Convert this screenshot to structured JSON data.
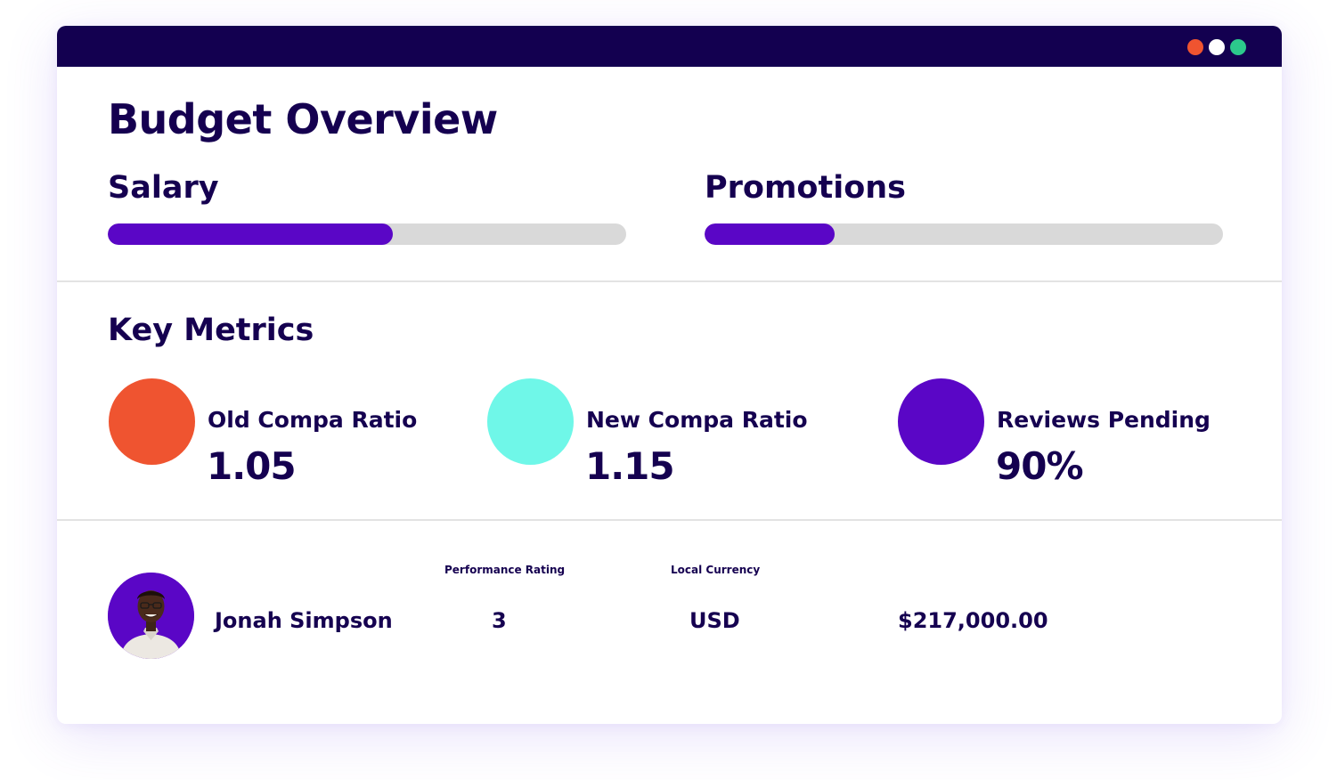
{
  "window": {
    "controls": [
      "close",
      "minimize",
      "maximize"
    ],
    "control_colors": [
      "#ef5430",
      "#ffffff",
      "#2cc98c"
    ],
    "titlebar_color": "#130050"
  },
  "page": {
    "title": "Budget Overview"
  },
  "budget": [
    {
      "label": "Salary",
      "progress_percent": 55
    },
    {
      "label": "Promotions",
      "progress_percent": 25
    }
  ],
  "key_metrics": {
    "title": "Key Metrics",
    "items": [
      {
        "label": "Old Compa Ratio",
        "value": "1.05",
        "color": "#ef5430"
      },
      {
        "label": "New Compa Ratio",
        "value": "1.15",
        "color": "#6ff7e8"
      },
      {
        "label": "Reviews Pending",
        "value": "90%",
        "color": "#5a06c6"
      }
    ]
  },
  "employee_table": {
    "headers": {
      "performance_rating": "Performance Rating",
      "local_currency": "Local Currency"
    },
    "rows": [
      {
        "name": "Jonah Simpson",
        "avatar_icon": "person-photo-icon",
        "performance_rating": "3",
        "local_currency": "USD",
        "amount": "$217,000.00"
      }
    ]
  },
  "colors": {
    "text": "#150050",
    "accent": "#5a06c6",
    "track": "#d9d9d9"
  }
}
